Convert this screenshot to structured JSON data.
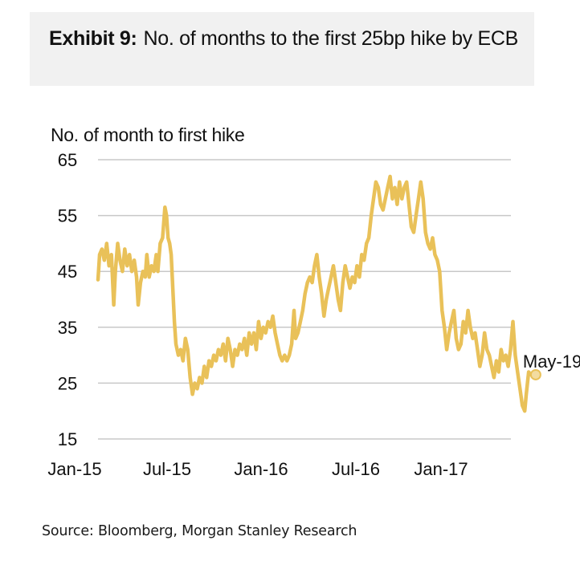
{
  "header": {
    "exhibit_label": "Exhibit 9:",
    "title": "No. of months to the first 25bp hike by ECB"
  },
  "source": "Source: Bloomberg, Morgan Stanley Research",
  "colors": {
    "line": "#e9c159",
    "grid": "#c8c8c8",
    "header_bg": "#f1f1f1"
  },
  "chart_data": {
    "type": "line",
    "title": "No. of months to the first 25bp hike by ECB",
    "xlabel": "",
    "ylabel": "No. of month to first hike",
    "ylim": [
      15,
      65
    ],
    "yticks": [
      65,
      55,
      45,
      35,
      25,
      15
    ],
    "xticks": [
      "Jan-15",
      "Jul-15",
      "Jan-16",
      "Jul-16",
      "Jan-17"
    ],
    "grid": "horizontal",
    "legend": "none",
    "annotation": {
      "label": "May-19",
      "x_month": 27.8,
      "y": 26.5
    },
    "series": [
      {
        "name": "No. of months to first 25bp hike",
        "x_unit": "months since Jan-15",
        "points": [
          [
            0.0,
            43.5
          ],
          [
            0.1,
            48
          ],
          [
            0.25,
            49
          ],
          [
            0.4,
            47
          ],
          [
            0.55,
            50
          ],
          [
            0.7,
            46
          ],
          [
            0.85,
            48
          ],
          [
            1.0,
            39
          ],
          [
            1.1,
            45
          ],
          [
            1.25,
            50
          ],
          [
            1.4,
            47
          ],
          [
            1.55,
            45
          ],
          [
            1.7,
            49
          ],
          [
            1.85,
            46
          ],
          [
            2.0,
            48
          ],
          [
            2.15,
            45
          ],
          [
            2.3,
            47
          ],
          [
            2.45,
            44
          ],
          [
            2.55,
            39
          ],
          [
            2.7,
            43
          ],
          [
            2.85,
            45
          ],
          [
            3.0,
            44
          ],
          [
            3.1,
            48
          ],
          [
            3.25,
            44
          ],
          [
            3.4,
            46
          ],
          [
            3.55,
            45
          ],
          [
            3.7,
            48
          ],
          [
            3.8,
            45
          ],
          [
            3.95,
            50
          ],
          [
            4.1,
            51
          ],
          [
            4.25,
            56.5
          ],
          [
            4.35,
            55
          ],
          [
            4.45,
            51
          ],
          [
            4.55,
            50
          ],
          [
            4.65,
            48
          ],
          [
            4.75,
            42
          ],
          [
            4.85,
            36
          ],
          [
            4.95,
            32
          ],
          [
            5.1,
            30
          ],
          [
            5.25,
            31
          ],
          [
            5.4,
            29
          ],
          [
            5.55,
            33
          ],
          [
            5.7,
            31
          ],
          [
            5.85,
            26
          ],
          [
            6.0,
            23
          ],
          [
            6.15,
            25
          ],
          [
            6.3,
            24
          ],
          [
            6.45,
            26
          ],
          [
            6.6,
            25
          ],
          [
            6.75,
            28
          ],
          [
            6.9,
            26
          ],
          [
            7.05,
            29
          ],
          [
            7.2,
            28
          ],
          [
            7.35,
            30
          ],
          [
            7.5,
            29
          ],
          [
            7.65,
            31
          ],
          [
            7.8,
            30
          ],
          [
            7.95,
            32
          ],
          [
            8.1,
            29
          ],
          [
            8.25,
            33
          ],
          [
            8.4,
            31
          ],
          [
            8.55,
            28
          ],
          [
            8.7,
            31
          ],
          [
            8.85,
            30
          ],
          [
            9.0,
            32
          ],
          [
            9.15,
            31
          ],
          [
            9.3,
            33
          ],
          [
            9.45,
            30
          ],
          [
            9.6,
            34
          ],
          [
            9.75,
            32
          ],
          [
            9.9,
            34
          ],
          [
            10.05,
            31
          ],
          [
            10.2,
            36
          ],
          [
            10.35,
            33
          ],
          [
            10.5,
            35
          ],
          [
            10.65,
            34
          ],
          [
            10.8,
            36
          ],
          [
            10.95,
            35
          ],
          [
            11.1,
            37
          ],
          [
            11.25,
            34
          ],
          [
            11.4,
            32
          ],
          [
            11.55,
            30
          ],
          [
            11.7,
            29
          ],
          [
            11.85,
            30
          ],
          [
            12.0,
            29
          ],
          [
            12.15,
            30
          ],
          [
            12.3,
            32
          ],
          [
            12.45,
            38
          ],
          [
            12.55,
            33
          ],
          [
            12.7,
            34
          ],
          [
            12.85,
            36
          ],
          [
            13.0,
            38
          ],
          [
            13.15,
            41
          ],
          [
            13.3,
            43
          ],
          [
            13.45,
            44
          ],
          [
            13.6,
            43
          ],
          [
            13.75,
            46
          ],
          [
            13.9,
            48
          ],
          [
            14.05,
            44
          ],
          [
            14.2,
            41
          ],
          [
            14.35,
            37
          ],
          [
            14.5,
            40
          ],
          [
            14.65,
            42
          ],
          [
            14.8,
            44
          ],
          [
            14.95,
            46
          ],
          [
            15.1,
            43
          ],
          [
            15.25,
            40
          ],
          [
            15.4,
            38
          ],
          [
            15.55,
            43
          ],
          [
            15.7,
            46
          ],
          [
            15.85,
            44
          ],
          [
            16.0,
            42
          ],
          [
            16.15,
            44
          ],
          [
            16.3,
            43
          ],
          [
            16.45,
            46
          ],
          [
            16.6,
            44
          ],
          [
            16.75,
            48
          ],
          [
            16.9,
            47
          ],
          [
            17.05,
            50
          ],
          [
            17.2,
            51
          ],
          [
            17.35,
            55
          ],
          [
            17.5,
            58
          ],
          [
            17.65,
            61
          ],
          [
            17.8,
            60
          ],
          [
            17.95,
            57
          ],
          [
            18.1,
            56
          ],
          [
            18.25,
            58
          ],
          [
            18.4,
            60
          ],
          [
            18.55,
            62
          ],
          [
            18.7,
            58
          ],
          [
            18.85,
            60
          ],
          [
            19.0,
            57
          ],
          [
            19.15,
            61
          ],
          [
            19.3,
            58
          ],
          [
            19.45,
            60
          ],
          [
            19.6,
            61
          ],
          [
            19.75,
            57
          ],
          [
            19.9,
            53
          ],
          [
            20.05,
            52
          ],
          [
            20.2,
            55
          ],
          [
            20.35,
            58
          ],
          [
            20.5,
            61
          ],
          [
            20.65,
            58
          ],
          [
            20.8,
            52
          ],
          [
            20.95,
            50
          ],
          [
            21.1,
            49
          ],
          [
            21.25,
            51
          ],
          [
            21.4,
            48
          ],
          [
            21.55,
            47
          ],
          [
            21.7,
            45
          ],
          [
            21.85,
            38
          ],
          [
            22.0,
            35
          ],
          [
            22.15,
            31
          ],
          [
            22.3,
            34
          ],
          [
            22.45,
            36
          ],
          [
            22.6,
            38
          ],
          [
            22.75,
            33
          ],
          [
            22.9,
            31
          ],
          [
            23.05,
            32
          ],
          [
            23.2,
            36
          ],
          [
            23.35,
            34
          ],
          [
            23.5,
            38
          ],
          [
            23.65,
            35
          ],
          [
            23.8,
            33
          ],
          [
            23.95,
            34
          ],
          [
            24.1,
            31
          ],
          [
            24.25,
            28
          ],
          [
            24.4,
            30
          ],
          [
            24.55,
            34
          ],
          [
            24.7,
            31
          ],
          [
            24.85,
            30
          ],
          [
            25.0,
            28
          ],
          [
            25.15,
            26
          ],
          [
            25.3,
            29
          ],
          [
            25.45,
            27
          ],
          [
            25.6,
            31
          ],
          [
            25.75,
            29
          ],
          [
            25.9,
            30
          ],
          [
            26.05,
            28
          ],
          [
            26.2,
            31
          ],
          [
            26.35,
            36
          ],
          [
            26.5,
            30
          ],
          [
            26.65,
            27
          ],
          [
            26.8,
            24
          ],
          [
            26.95,
            21
          ],
          [
            27.1,
            20
          ],
          [
            27.2,
            23
          ],
          [
            27.35,
            27
          ],
          [
            27.5,
            26.5
          ]
        ]
      }
    ]
  }
}
